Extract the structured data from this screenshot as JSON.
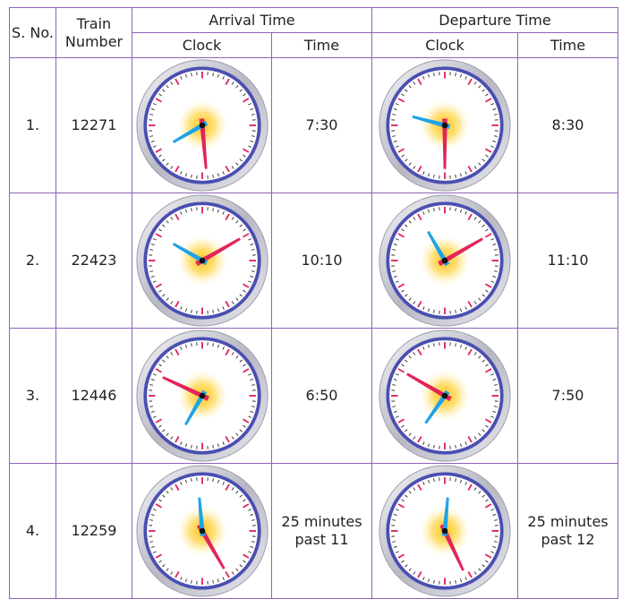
{
  "table": {
    "header": {
      "s_no": "S. No.",
      "train_number": "Train Number",
      "arrival_time": "Arrival Time",
      "departure_time": "Departure Time",
      "arrival_clock": "Clock",
      "arrival_time_sub": "Time",
      "departure_clock": "Clock",
      "departure_time_sub": "Time"
    },
    "rows": [
      [
        "1.",
        "12271",
        "7:30",
        "8:30"
      ],
      [
        "2.",
        "22423",
        "10:10",
        "11:10"
      ],
      [
        "3.",
        "12446",
        "6:50",
        "7:50"
      ],
      [
        "4.",
        "12259",
        "25 minutes past 11",
        "25 minutes past 12"
      ]
    ]
  }
}
